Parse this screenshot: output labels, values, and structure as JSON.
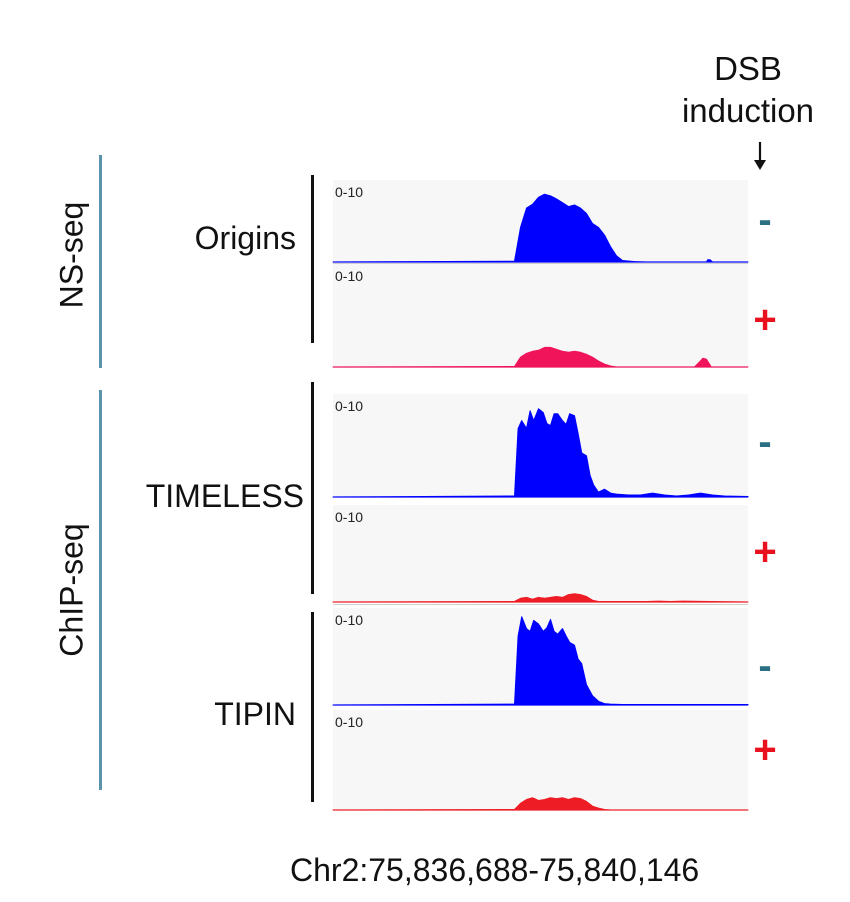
{
  "header": {
    "line1": "DSB",
    "line2": "induction",
    "arrow_icon": "down-arrow-icon"
  },
  "groups": [
    {
      "label": "NS-seq"
    },
    {
      "label": "ChIP-seq"
    }
  ],
  "track_labels": [
    "Origins",
    "TIMELESS",
    "TIPIN"
  ],
  "coordinates": "Chr2:75,836,688-75,840,146",
  "colors": {
    "minus_signal": "#0000ff",
    "plus_signal_origins": "#f0145a",
    "plus_signal_chip": "#ee1c24",
    "minus_sign": "#2b6f82",
    "plus_sign": "#e8121f"
  },
  "chart_data": {
    "type": "area",
    "x_unit": "Chr2 position (bp)",
    "xlim": [
      75836688,
      75840146
    ],
    "ylim": [
      0,
      10
    ],
    "y_range_label": "0-10",
    "tracks": [
      {
        "target": "Origins",
        "assay": "NS-seq",
        "dsb": "-",
        "sign": "-",
        "range_label": "0-10",
        "color": "#0000ff",
        "x": [
          75836688,
          75838200,
          75838250,
          75838300,
          75838350,
          75838400,
          75838450,
          75838500,
          75838550,
          75838600,
          75838650,
          75838700,
          75838750,
          75838800,
          75838850,
          75838900,
          75838950,
          75839000,
          75839050,
          75839100,
          75839200,
          75839300,
          75839800,
          75839810,
          75839830,
          75839850,
          75840146
        ],
        "y": [
          0,
          0.1,
          4.5,
          7.0,
          7.5,
          8.4,
          8.8,
          8.6,
          8.2,
          7.7,
          7.2,
          7.4,
          7.0,
          6.3,
          5.0,
          4.5,
          3.5,
          2.0,
          0.8,
          0.2,
          0.05,
          0,
          0,
          0.3,
          0.3,
          0,
          0
        ]
      },
      {
        "target": "Origins",
        "assay": "NS-seq",
        "dsb": "+",
        "sign": "+",
        "range_label": "0-10",
        "color": "#f0145a",
        "x": [
          75836688,
          75838200,
          75838250,
          75838300,
          75838350,
          75838400,
          75838450,
          75838500,
          75838550,
          75838600,
          75838650,
          75838700,
          75838750,
          75838800,
          75838850,
          75838900,
          75838950,
          75839000,
          75839050,
          75839700,
          75839740,
          75839770,
          75839800,
          75839840,
          75840146
        ],
        "y": [
          0,
          0.05,
          1.0,
          1.4,
          1.6,
          1.7,
          2.0,
          2.0,
          1.8,
          1.6,
          1.5,
          1.6,
          1.5,
          1.3,
          1.0,
          0.6,
          0.3,
          0.1,
          0,
          0,
          0.5,
          0.9,
          0.8,
          0,
          0
        ]
      },
      {
        "target": "TIMELESS",
        "assay": "ChIP-seq",
        "dsb": "-",
        "sign": "-",
        "range_label": "0-10",
        "color": "#0000ff",
        "x": [
          75836688,
          75838200,
          75838230,
          75838260,
          75838300,
          75838330,
          75838360,
          75838400,
          75838440,
          75838470,
          75838500,
          75838530,
          75838560,
          75838600,
          75838630,
          75838660,
          75838700,
          75838730,
          75838760,
          75838800,
          75838830,
          75838860,
          75838900,
          75838950,
          75839000,
          75839050,
          75839150,
          75839250,
          75839350,
          75839450,
          75839550,
          75839650,
          75839750,
          75839850,
          75839950,
          75840146
        ],
        "y": [
          0,
          0.1,
          7.0,
          7.8,
          7.0,
          8.8,
          7.8,
          9.0,
          8.6,
          7.5,
          7.3,
          8.5,
          8.5,
          7.8,
          7.4,
          8.5,
          8.3,
          6.5,
          4.5,
          4.2,
          2.2,
          1.2,
          0.5,
          0.8,
          0.4,
          0.3,
          0.2,
          0.2,
          0.4,
          0.2,
          0.1,
          0.2,
          0.4,
          0.2,
          0.1,
          0.05
        ]
      },
      {
        "target": "TIMELESS",
        "assay": "ChIP-seq",
        "dsb": "+",
        "sign": "+",
        "range_label": "0-10",
        "color": "#ee1c24",
        "x": [
          75836688,
          75838200,
          75838250,
          75838300,
          75838350,
          75838400,
          75838450,
          75838500,
          75838550,
          75838600,
          75838650,
          75838700,
          75838750,
          75838800,
          75838850,
          75838900,
          75839300,
          75839400,
          75839500,
          75839600,
          75840146
        ],
        "y": [
          0,
          0.05,
          0.4,
          0.5,
          0.3,
          0.5,
          0.4,
          0.5,
          0.6,
          0.5,
          0.8,
          0.9,
          0.8,
          0.6,
          0.2,
          0.05,
          0.05,
          0.1,
          0.05,
          0.1,
          0
        ]
      },
      {
        "target": "TIPIN",
        "assay": "ChIP-seq",
        "dsb": "-",
        "sign": "-",
        "range_label": "0-10",
        "color": "#0000ff",
        "x": [
          75836688,
          75838200,
          75838230,
          75838260,
          75838300,
          75838330,
          75838360,
          75838400,
          75838440,
          75838470,
          75838500,
          75838530,
          75838560,
          75838600,
          75838630,
          75838660,
          75838700,
          75838730,
          75838760,
          75838800,
          75838850,
          75838900,
          75838950,
          75839000,
          75839100,
          75839500,
          75840146
        ],
        "y": [
          0,
          0.1,
          7.5,
          9.6,
          8.3,
          8.0,
          9.2,
          8.8,
          8.0,
          8.4,
          9.3,
          8.0,
          7.7,
          8.3,
          7.5,
          6.8,
          6.5,
          5.0,
          4.5,
          2.2,
          1.0,
          0.4,
          0.15,
          0.1,
          0.05,
          0.05,
          0.05
        ]
      },
      {
        "target": "TIPIN",
        "assay": "ChIP-seq",
        "dsb": "+",
        "sign": "+",
        "range_label": "0-10",
        "color": "#ee1c24",
        "x": [
          75836688,
          75838200,
          75838250,
          75838300,
          75838350,
          75838400,
          75838450,
          75838500,
          75838550,
          75838600,
          75838650,
          75838700,
          75838750,
          75838800,
          75838850,
          75838900,
          75838950,
          75839000,
          75840146
        ],
        "y": [
          0,
          0.05,
          0.7,
          1.1,
          1.3,
          1.0,
          1.1,
          1.3,
          1.2,
          1.3,
          1.1,
          1.3,
          1.2,
          0.9,
          0.4,
          0.2,
          0.05,
          0,
          0
        ]
      }
    ]
  }
}
